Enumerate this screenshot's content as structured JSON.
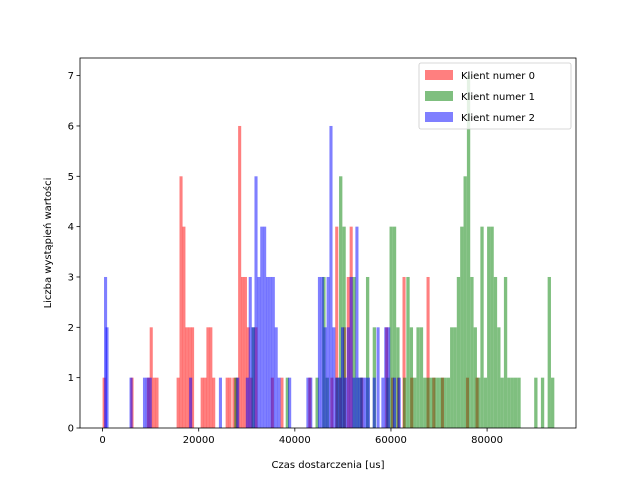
{
  "chart_data": {
    "type": "histogram",
    "title": "",
    "xlabel": "Czas dostarczenia [us]",
    "ylabel": "Liczba wystąpień wartości",
    "xlim": [
      -4700,
      98500
    ],
    "ylim": [
      0,
      7.35
    ],
    "xticks": [
      0,
      20000,
      40000,
      60000,
      80000
    ],
    "yticks": [
      0,
      1,
      2,
      3,
      4,
      5,
      6,
      7
    ],
    "grid": false,
    "legend_position": "top-right",
    "series": [
      {
        "name": "Klient numer 0",
        "color": "#ff0000",
        "alpha": 0.5,
        "bin_width": 640,
        "bars": [
          [
            0,
            1
          ],
          [
            5800,
            1
          ],
          [
            9200,
            1
          ],
          [
            9800,
            2
          ],
          [
            10400,
            1
          ],
          [
            11000,
            1
          ],
          [
            15400,
            1
          ],
          [
            16000,
            5
          ],
          [
            16600,
            4
          ],
          [
            17200,
            2
          ],
          [
            17800,
            2
          ],
          [
            18400,
            2
          ],
          [
            20400,
            1
          ],
          [
            21000,
            1
          ],
          [
            21600,
            2
          ],
          [
            22200,
            2
          ],
          [
            22800,
            1
          ],
          [
            25600,
            1
          ],
          [
            26200,
            1
          ],
          [
            27000,
            1
          ],
          [
            27600,
            1
          ],
          [
            28200,
            6
          ],
          [
            28800,
            3
          ],
          [
            29400,
            3
          ],
          [
            30000,
            2
          ],
          [
            30600,
            1
          ],
          [
            31600,
            2
          ],
          [
            35000,
            1
          ],
          [
            37000,
            1
          ],
          [
            42800,
            1
          ],
          [
            47400,
            1
          ],
          [
            48400,
            4
          ],
          [
            49200,
            1
          ],
          [
            50000,
            2
          ],
          [
            50800,
            3
          ],
          [
            51400,
            4
          ],
          [
            53600,
            1
          ],
          [
            58800,
            2
          ],
          [
            60000,
            1
          ],
          [
            61200,
            1
          ],
          [
            62400,
            3
          ],
          [
            64000,
            1
          ],
          [
            67400,
            3
          ],
          [
            68600,
            1
          ],
          [
            70400,
            1
          ],
          [
            75600,
            1
          ],
          [
            77600,
            1
          ]
        ]
      },
      {
        "name": "Klient numer 1",
        "color": "#008000",
        "alpha": 0.5,
        "bin_width": 690,
        "bars": [
          [
            27400,
            1
          ],
          [
            31000,
            2
          ],
          [
            38100,
            1
          ],
          [
            44300,
            1
          ],
          [
            45700,
            3
          ],
          [
            46400,
            1
          ],
          [
            48500,
            1
          ],
          [
            49200,
            5
          ],
          [
            49900,
            4
          ],
          [
            52000,
            3
          ],
          [
            52700,
            1
          ],
          [
            53400,
            1
          ],
          [
            54800,
            3
          ],
          [
            56200,
            2
          ],
          [
            59000,
            1
          ],
          [
            59700,
            4
          ],
          [
            60400,
            4
          ],
          [
            61100,
            2
          ],
          [
            62500,
            1
          ],
          [
            63200,
            3
          ],
          [
            63900,
            2
          ],
          [
            64600,
            1
          ],
          [
            65300,
            2
          ],
          [
            66000,
            2
          ],
          [
            66700,
            1
          ],
          [
            67400,
            1
          ],
          [
            68100,
            1
          ],
          [
            68800,
            1
          ],
          [
            69500,
            1
          ],
          [
            70200,
            1
          ],
          [
            70900,
            1
          ],
          [
            71600,
            1
          ],
          [
            72300,
            2
          ],
          [
            73000,
            2
          ],
          [
            73700,
            3
          ],
          [
            74400,
            4
          ],
          [
            75100,
            5
          ],
          [
            75800,
            7
          ],
          [
            76500,
            3
          ],
          [
            77200,
            2
          ],
          [
            77900,
            1
          ],
          [
            78600,
            4
          ],
          [
            79300,
            1
          ],
          [
            80000,
            4
          ],
          [
            80700,
            4
          ],
          [
            81400,
            3
          ],
          [
            82100,
            2
          ],
          [
            82800,
            1
          ],
          [
            83500,
            3
          ],
          [
            84200,
            1
          ],
          [
            84900,
            1
          ],
          [
            85600,
            1
          ],
          [
            86300,
            1
          ],
          [
            89800,
            1
          ],
          [
            91200,
            1
          ],
          [
            92600,
            3
          ],
          [
            93300,
            1
          ]
        ]
      },
      {
        "name": "Klient numer 2",
        "color": "#0000ff",
        "alpha": 0.5,
        "bin_width": 640,
        "bars": [
          [
            300,
            3
          ],
          [
            600,
            2
          ],
          [
            5600,
            1
          ],
          [
            8400,
            1
          ],
          [
            9000,
            1
          ],
          [
            9600,
            1
          ],
          [
            18000,
            1
          ],
          [
            24200,
            1
          ],
          [
            27800,
            1
          ],
          [
            29800,
            1
          ],
          [
            30400,
            3
          ],
          [
            31000,
            2
          ],
          [
            31600,
            5
          ],
          [
            32200,
            3
          ],
          [
            32800,
            4
          ],
          [
            33400,
            4
          ],
          [
            34000,
            3
          ],
          [
            34600,
            3
          ],
          [
            35200,
            3
          ],
          [
            35800,
            2
          ],
          [
            36400,
            1
          ],
          [
            38600,
            1
          ],
          [
            42400,
            1
          ],
          [
            43000,
            1
          ],
          [
            44800,
            3
          ],
          [
            45400,
            3
          ],
          [
            46000,
            2
          ],
          [
            46600,
            3
          ],
          [
            47200,
            6
          ],
          [
            47800,
            2
          ],
          [
            48400,
            1
          ],
          [
            49000,
            1
          ],
          [
            49600,
            2
          ],
          [
            50200,
            1
          ],
          [
            50800,
            2
          ],
          [
            51400,
            3
          ],
          [
            52000,
            1
          ],
          [
            52600,
            4
          ],
          [
            53200,
            1
          ],
          [
            53800,
            1
          ],
          [
            54400,
            1
          ],
          [
            55000,
            1
          ],
          [
            56200,
            1
          ],
          [
            57000,
            2
          ],
          [
            58000,
            1
          ],
          [
            58600,
            2
          ],
          [
            59200,
            2
          ],
          [
            60400,
            1
          ],
          [
            61400,
            1
          ]
        ]
      }
    ]
  }
}
